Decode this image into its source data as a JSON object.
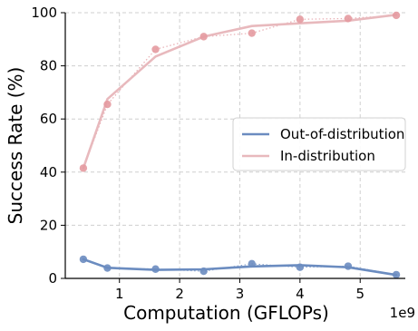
{
  "chart_data": {
    "type": "line",
    "xlabel": "Computation (GFLOPs)",
    "ylabel": "Success Rate (%)",
    "x_offset_label": "1e9",
    "x_scale": 1000000000,
    "xlim": [
      0.1,
      5.75
    ],
    "ylim": [
      0,
      100
    ],
    "x_ticks": [
      1,
      2,
      3,
      4,
      5
    ],
    "y_ticks": [
      0,
      20,
      40,
      60,
      80,
      100
    ],
    "grid": true,
    "legend_position": "center-right",
    "series": [
      {
        "name": "Out-of-distribution",
        "color": "#6b8cc0",
        "points": [
          {
            "x": 0.4,
            "y": 7.2
          },
          {
            "x": 0.8,
            "y": 3.9
          },
          {
            "x": 1.6,
            "y": 3.5
          },
          {
            "x": 2.4,
            "y": 2.7
          },
          {
            "x": 3.2,
            "y": 5.5
          },
          {
            "x": 4.0,
            "y": 4.2
          },
          {
            "x": 4.8,
            "y": 4.6
          },
          {
            "x": 5.6,
            "y": 1.4
          }
        ],
        "smooth": [
          {
            "x": 0.4,
            "y": 7.2
          },
          {
            "x": 0.8,
            "y": 4.0
          },
          {
            "x": 1.6,
            "y": 3.2
          },
          {
            "x": 2.4,
            "y": 3.4
          },
          {
            "x": 3.2,
            "y": 4.5
          },
          {
            "x": 4.0,
            "y": 5.0
          },
          {
            "x": 4.8,
            "y": 4.2
          },
          {
            "x": 5.6,
            "y": 1.3
          }
        ]
      },
      {
        "name": "In-distribution",
        "color": "#e8b9bd",
        "marker_color": "#e49aa0",
        "points": [
          {
            "x": 0.4,
            "y": 41.5
          },
          {
            "x": 0.8,
            "y": 65.5
          },
          {
            "x": 1.6,
            "y": 86.2
          },
          {
            "x": 2.4,
            "y": 91.0
          },
          {
            "x": 3.2,
            "y": 92.3
          },
          {
            "x": 4.0,
            "y": 97.5
          },
          {
            "x": 4.8,
            "y": 97.8
          },
          {
            "x": 5.6,
            "y": 99.0
          }
        ],
        "smooth": [
          {
            "x": 0.4,
            "y": 41.5
          },
          {
            "x": 0.8,
            "y": 67.5
          },
          {
            "x": 1.6,
            "y": 83.5
          },
          {
            "x": 2.4,
            "y": 91.0
          },
          {
            "x": 3.2,
            "y": 95.0
          },
          {
            "x": 4.0,
            "y": 96.0
          },
          {
            "x": 4.8,
            "y": 97.0
          },
          {
            "x": 5.6,
            "y": 99.2
          }
        ]
      }
    ]
  }
}
